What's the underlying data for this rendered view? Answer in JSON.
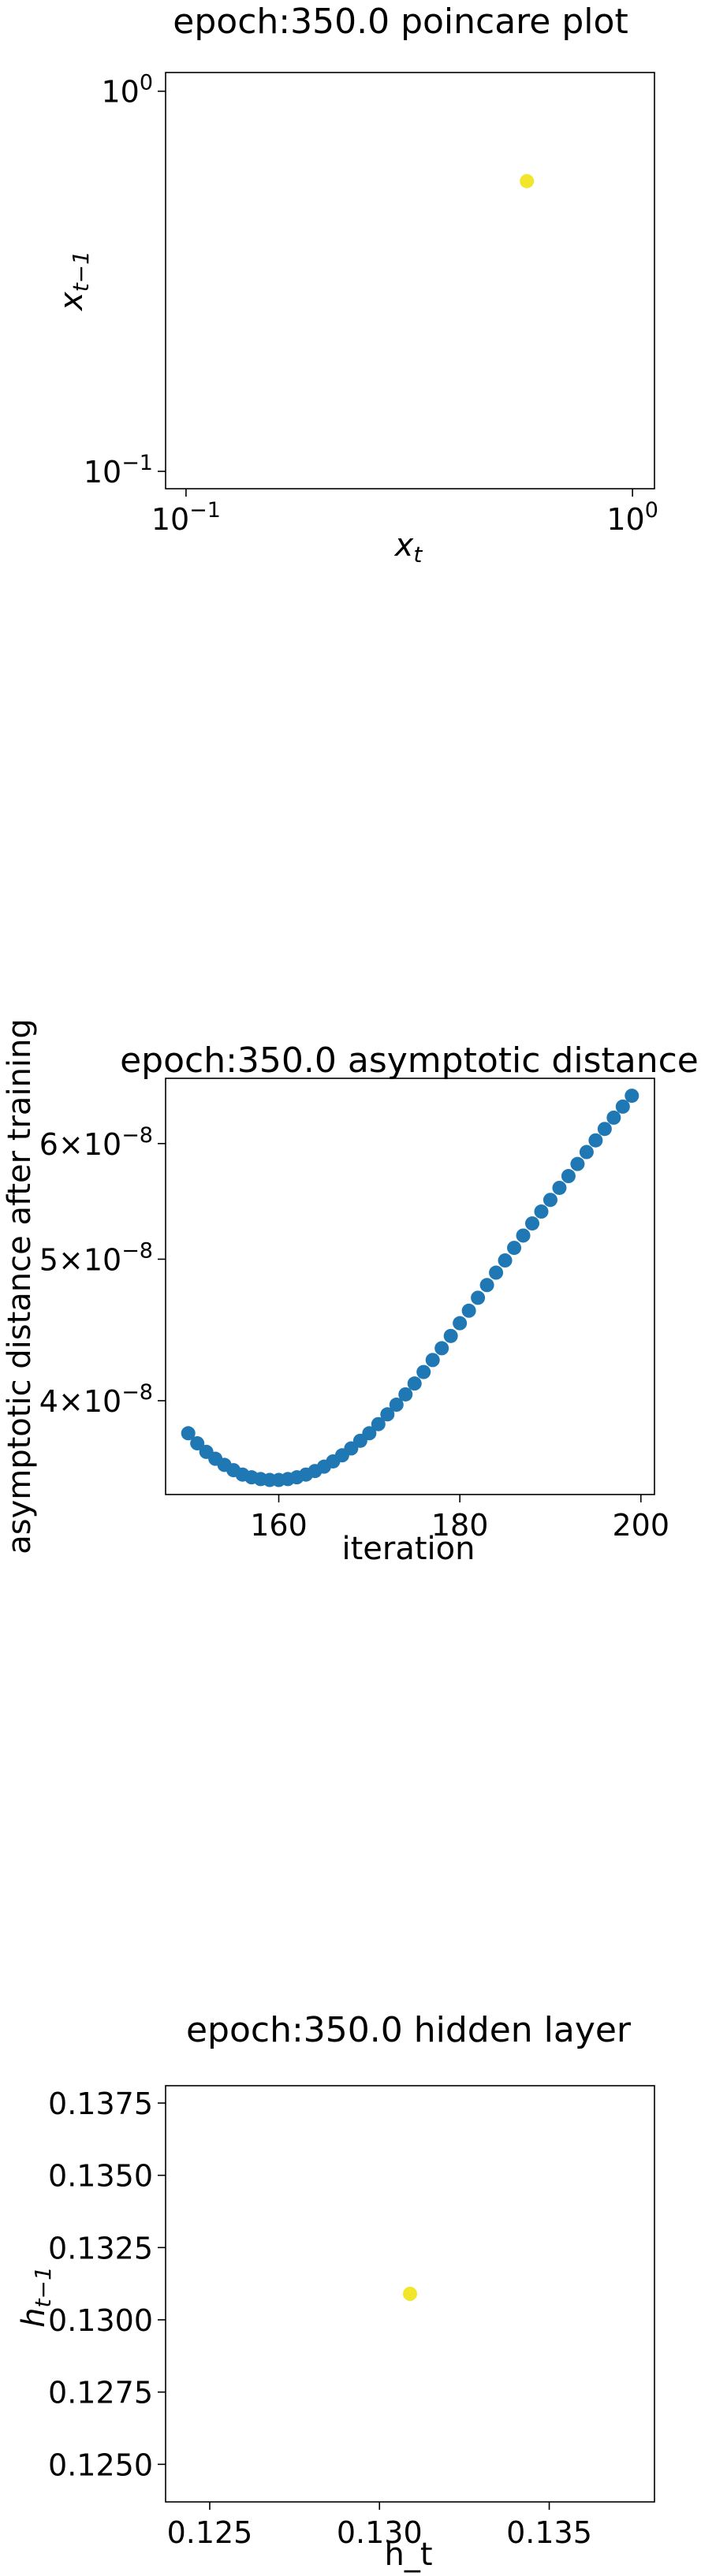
{
  "chart_data": [
    {
      "type": "scatter",
      "title": "epoch:350.0 poincare plot",
      "xlabel": "x",
      "xlabel_sub": "t",
      "ylabel": "x",
      "ylabel_sub": "t−1",
      "xscale": "log",
      "yscale": "log",
      "xlim": [
        0.09,
        1.12
      ],
      "ylim": [
        0.09,
        1.12
      ],
      "xticks": [
        {
          "v": 0.1,
          "base": "10",
          "exp": "−1"
        },
        {
          "v": 1,
          "base": "10",
          "exp": "0"
        }
      ],
      "yticks": [
        {
          "v": 0.1,
          "base": "10",
          "exp": "−1"
        },
        {
          "v": 1,
          "base": "10",
          "exp": "0"
        }
      ],
      "points": [
        {
          "x": 0.58,
          "y": 0.58
        }
      ],
      "color": "#f2e62b",
      "grid": false
    },
    {
      "type": "scatter",
      "title": "epoch:350.0 asymptotic distance",
      "xlabel": "iteration",
      "ylabel": "asymptotic distance after training",
      "yscale": "log",
      "xlim": [
        147.5,
        201.5
      ],
      "ylim": [
        3.45e-08,
        6.65e-08
      ],
      "xticks": [
        {
          "v": 160,
          "label": "160"
        },
        {
          "v": 180,
          "label": "180"
        },
        {
          "v": 200,
          "label": "200"
        }
      ],
      "yticks": [
        {
          "v": 4e-08,
          "mant": "4",
          "base": "10",
          "exp": "−8"
        },
        {
          "v": 5e-08,
          "mant": "5",
          "base": "10",
          "exp": "−8"
        },
        {
          "v": 6e-08,
          "mant": "6",
          "base": "10",
          "exp": "−8"
        }
      ],
      "x": [
        150,
        151,
        152,
        153,
        154,
        155,
        156,
        157,
        158,
        159,
        160,
        161,
        162,
        163,
        164,
        165,
        166,
        167,
        168,
        169,
        170,
        171,
        172,
        173,
        174,
        175,
        176,
        177,
        178,
        179,
        180,
        181,
        182,
        183,
        184,
        185,
        186,
        187,
        188,
        189,
        190,
        191,
        192,
        193,
        194,
        195,
        196,
        197,
        198,
        199
      ],
      "y": [
        3.8e-08,
        3.74e-08,
        3.69e-08,
        3.65e-08,
        3.615e-08,
        3.585e-08,
        3.56e-08,
        3.545e-08,
        3.535e-08,
        3.53e-08,
        3.53e-08,
        3.535e-08,
        3.545e-08,
        3.56e-08,
        3.58e-08,
        3.605e-08,
        3.635e-08,
        3.67e-08,
        3.71e-08,
        3.755e-08,
        3.8e-08,
        3.855e-08,
        3.915e-08,
        3.975e-08,
        4.04e-08,
        4.11e-08,
        4.185e-08,
        4.265e-08,
        4.345e-08,
        4.43e-08,
        4.52e-08,
        4.61e-08,
        4.705e-08,
        4.8e-08,
        4.895e-08,
        4.99e-08,
        5.09e-08,
        5.19e-08,
        5.29e-08,
        5.39e-08,
        5.49e-08,
        5.595e-08,
        5.7e-08,
        5.81e-08,
        5.92e-08,
        6.03e-08,
        6.14e-08,
        6.25e-08,
        6.36e-08,
        6.47e-08
      ],
      "color": "#1f77b4",
      "grid": false
    },
    {
      "type": "scatter",
      "title": "epoch:350.0 hidden layer",
      "xlabel": "h_t",
      "ylabel": "h",
      "ylabel_sub": "t−1",
      "xlim": [
        0.1237,
        0.1381
      ],
      "ylim": [
        0.1237,
        0.1381
      ],
      "xticks": [
        {
          "v": 0.125,
          "label": "0.125"
        },
        {
          "v": 0.13,
          "label": "0.130"
        },
        {
          "v": 0.135,
          "label": "0.135"
        }
      ],
      "yticks": [
        {
          "v": 0.125,
          "label": "0.1250"
        },
        {
          "v": 0.1275,
          "label": "0.1275"
        },
        {
          "v": 0.13,
          "label": "0.1300"
        },
        {
          "v": 0.1325,
          "label": "0.1325"
        },
        {
          "v": 0.135,
          "label": "0.1350"
        },
        {
          "v": 0.1375,
          "label": "0.1375"
        }
      ],
      "points": [
        {
          "x": 0.1309,
          "y": 0.1309
        }
      ],
      "color": "#f2e62b",
      "grid": false
    }
  ]
}
